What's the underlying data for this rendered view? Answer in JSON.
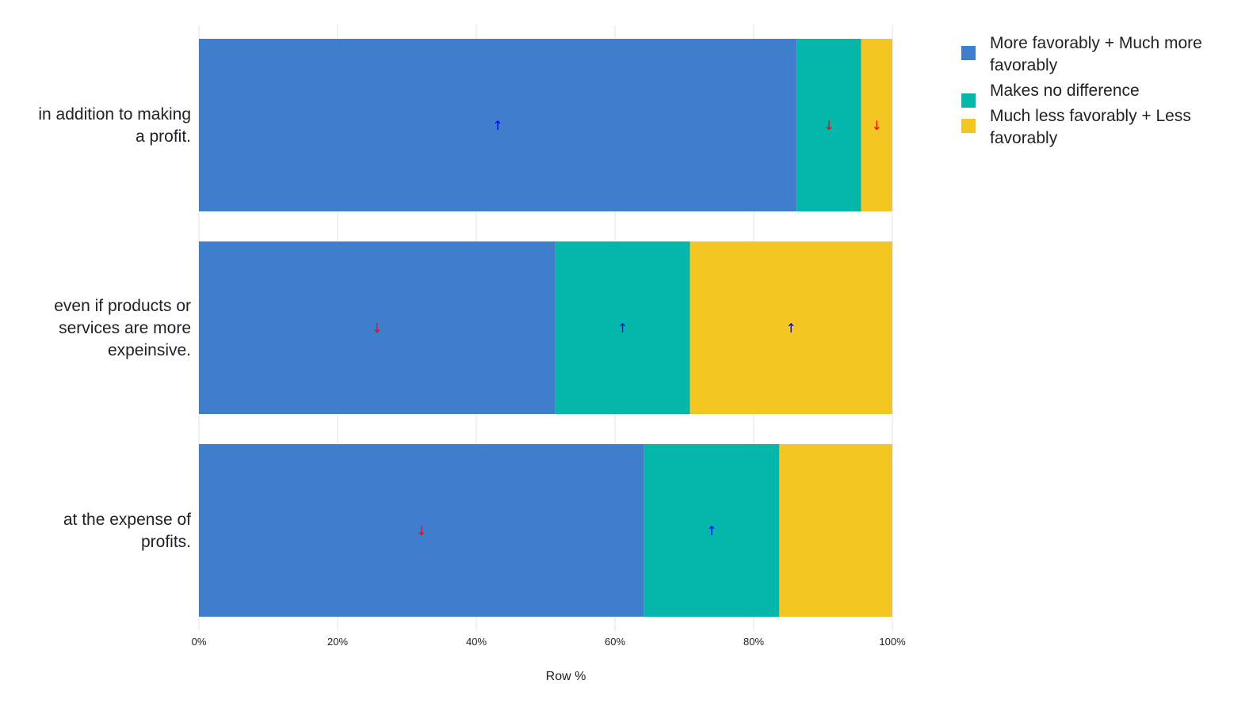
{
  "chart_data": {
    "type": "bar",
    "orientation": "horizontal",
    "stacked": true,
    "categories": [
      [
        "in addition to making",
        "a profit."
      ],
      [
        "even if products or",
        "services are more",
        "expeinsive."
      ],
      [
        "at the expense of",
        "profits."
      ]
    ],
    "series": [
      {
        "name": [
          "More favorably + Much more",
          "favorably"
        ],
        "color": "#3f7ecc",
        "values": [
          86.2,
          51.4,
          64.2
        ],
        "arrows": [
          "up",
          "down",
          "down"
        ]
      },
      {
        "name": [
          "Makes no difference"
        ],
        "color": "#05b6ab",
        "values": [
          9.3,
          19.4,
          19.5
        ],
        "arrows": [
          "down",
          "up",
          "up"
        ]
      },
      {
        "name": [
          "Much less favorably + Less",
          "favorably"
        ],
        "color": "#f4c622",
        "values": [
          4.5,
          29.2,
          16.3
        ],
        "arrows": [
          "down",
          "up",
          ""
        ]
      }
    ],
    "xlabel": "Row %",
    "xlim": [
      0,
      100
    ],
    "xticks": [
      "0%",
      "20%",
      "40%",
      "60%",
      "80%",
      "100%"
    ],
    "grid": true,
    "legend_position": "top-right",
    "arrow_colors": {
      "up": "#0000ff",
      "down": "#ff0000"
    },
    "arrow_glyphs": {
      "up": "↑",
      "down": "↓"
    }
  }
}
